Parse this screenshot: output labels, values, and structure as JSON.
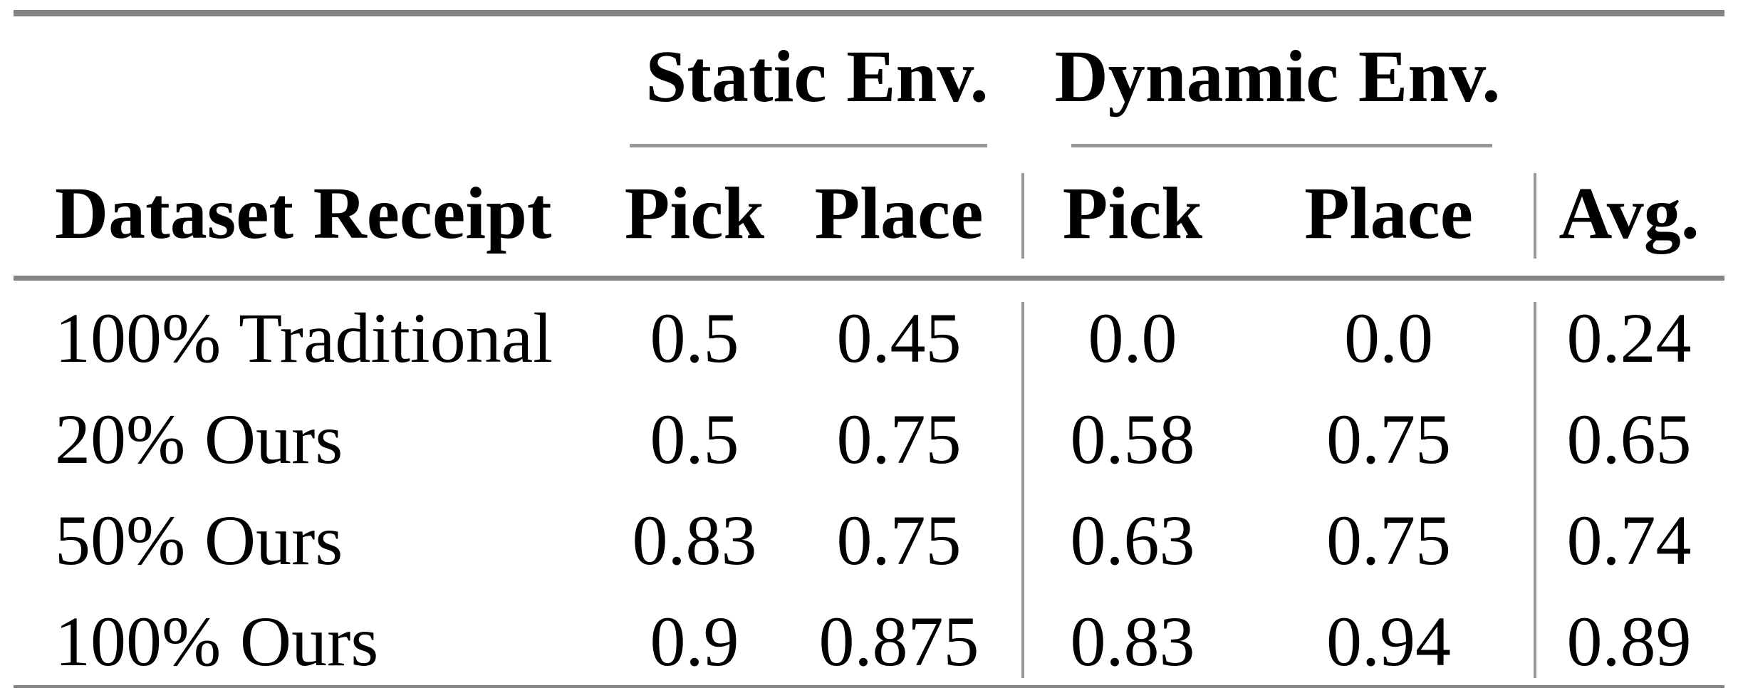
{
  "table": {
    "group_header": {
      "static": "Static Env.",
      "dynamic": "Dynamic Env."
    },
    "columns": {
      "dataset": "Dataset Receipt",
      "static_pick": "Pick",
      "static_place": "Place",
      "dynamic_pick": "Pick",
      "dynamic_place": "Place",
      "avg": "Avg."
    },
    "rows": [
      {
        "label": "100% Traditional",
        "values": [
          "0.5",
          "0.45",
          "0.0",
          "0.0",
          "0.24"
        ]
      },
      {
        "label": "20% Ours",
        "values": [
          "0.5",
          "0.75",
          "0.58",
          "0.75",
          "0.65"
        ]
      },
      {
        "label": "50% Ours",
        "values": [
          "0.83",
          "0.75",
          "0.63",
          "0.75",
          "0.74"
        ]
      },
      {
        "label": "100% Ours",
        "values": [
          "0.9",
          "0.875",
          "0.83",
          "0.94",
          "0.89"
        ]
      }
    ],
    "colors": {
      "rule_heavy": "#848484",
      "rule_light": "#989898",
      "text": "#000000",
      "bg": "#ffffff"
    }
  }
}
